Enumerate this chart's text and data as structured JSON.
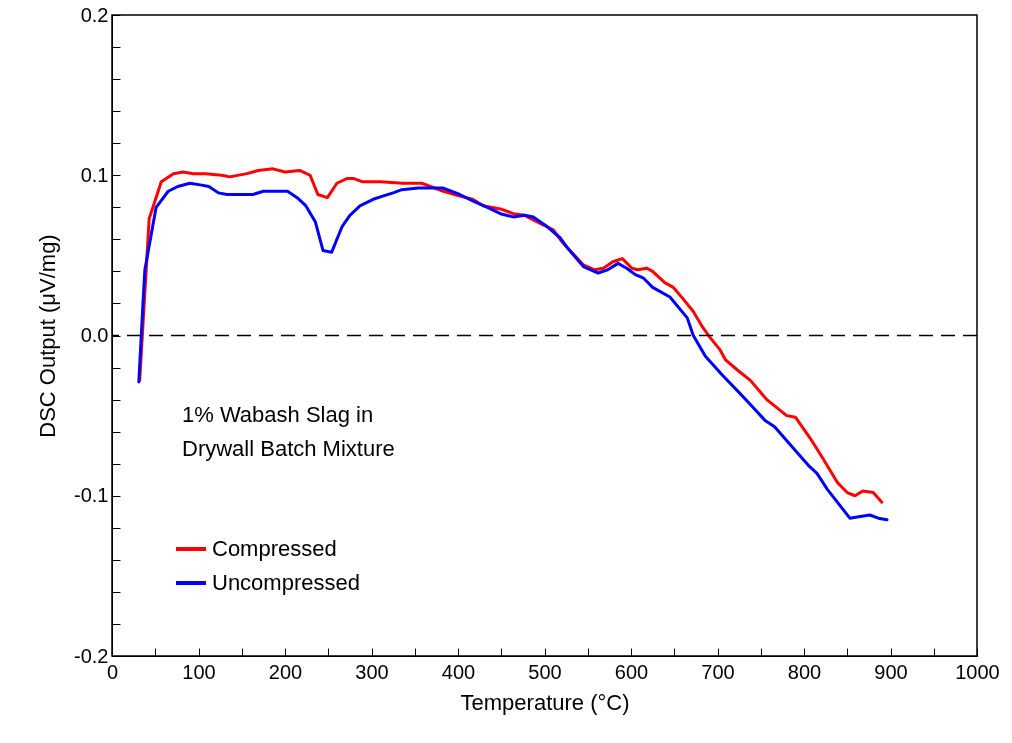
{
  "chart_data": {
    "type": "line",
    "xlabel": "Temperature (°C)",
    "ylabel": "DSC Output (μV/mg)",
    "annotations": [
      "1% Wabash Slag in\nDrywall Batch Mixture"
    ],
    "xlim": [
      0,
      1000
    ],
    "ylim": [
      -0.2,
      0.2
    ],
    "xticks": [
      0,
      {
        "value": 50,
        "label": null
      },
      100,
      {
        "value": 150,
        "label": null
      },
      200,
      {
        "value": 250,
        "label": null
      },
      300,
      {
        "value": 350,
        "label": null
      },
      400,
      {
        "value": 450,
        "label": null
      },
      500,
      {
        "value": 550,
        "label": null
      },
      600,
      {
        "value": 650,
        "label": null
      },
      700,
      {
        "value": 750,
        "label": null
      },
      800,
      {
        "value": 850,
        "label": null
      },
      900,
      {
        "value": 950,
        "label": null
      },
      1000
    ],
    "yticks": [
      -0.2,
      {
        "value": -0.18,
        "label": null
      },
      {
        "value": -0.16,
        "label": null
      },
      {
        "value": -0.14,
        "label": null
      },
      {
        "value": -0.12,
        "label": null
      },
      -0.1,
      {
        "value": -0.08,
        "label": null
      },
      {
        "value": -0.06,
        "label": null
      },
      {
        "value": -0.04,
        "label": null
      },
      {
        "value": -0.02,
        "label": null
      },
      {
        "value": 0,
        "label": "0.0"
      },
      {
        "value": 0.02,
        "label": null
      },
      {
        "value": 0.04,
        "label": null
      },
      {
        "value": 0.06,
        "label": null
      },
      {
        "value": 0.08,
        "label": null
      },
      0.1,
      {
        "value": 0.12,
        "label": null
      },
      {
        "value": 0.14,
        "label": null
      },
      {
        "value": 0.16,
        "label": null
      },
      {
        "value": 0.18,
        "label": null
      },
      0.2
    ],
    "grid": false,
    "legend": "bottom left",
    "line_style": "solid",
    "ref_lines": [
      {
        "axis": "y",
        "value": 0,
        "line_style": "dashed",
        "color": "#000000"
      }
    ],
    "series": [
      {
        "name": "Compressed",
        "color": "#ff0000",
        "x": [
          32,
          43,
          57,
          71,
          82,
          94,
          108,
          127,
          136,
          156,
          169,
          186,
          200,
          217,
          229,
          238,
          249,
          260,
          272,
          279,
          289,
          298,
          310,
          336,
          358,
          368,
          383,
          402,
          417,
          429,
          449,
          464,
          477,
          495,
          510,
          521,
          545,
          558,
          568,
          579,
          590,
          601,
          608,
          618,
          625,
          639,
          649,
          660,
          672,
          683,
          691,
          703,
          709,
          724,
          738,
          757,
          780,
          790,
          807,
          821,
          839,
          850,
          859,
          868,
          880,
          890
        ],
        "values": [
          -0.028,
          0.073,
          0.096,
          0.101,
          0.102,
          0.101,
          0.101,
          0.1,
          0.099,
          0.101,
          0.103,
          0.104,
          0.102,
          0.103,
          0.1,
          0.088,
          0.086,
          0.095,
          0.098,
          0.098,
          0.096,
          0.096,
          0.096,
          0.095,
          0.095,
          0.093,
          0.09,
          0.087,
          0.085,
          0.081,
          0.079,
          0.076,
          0.075,
          0.07,
          0.066,
          0.058,
          0.044,
          0.041,
          0.042,
          0.046,
          0.048,
          0.042,
          0.041,
          0.042,
          0.04,
          0.033,
          0.03,
          0.023,
          0.015,
          0.005,
          -0.001,
          -0.009,
          -0.015,
          -0.022,
          -0.028,
          -0.04,
          -0.05,
          -0.051,
          -0.064,
          -0.076,
          -0.092,
          -0.098,
          -0.1,
          -0.097,
          -0.098,
          -0.104
        ]
      },
      {
        "name": "Uncompressed",
        "color": "#0000ff",
        "x": [
          31,
          36,
          38,
          51,
          65,
          76,
          90,
          102,
          112,
          123,
          133,
          151,
          163,
          175,
          194,
          203,
          214,
          224,
          235,
          244,
          254,
          266,
          275,
          287,
          302,
          313,
          325,
          335,
          354,
          371,
          383,
          402,
          417,
          434,
          449,
          464,
          477,
          487,
          503,
          518,
          526,
          545,
          562,
          573,
          585,
          595,
          605,
          614,
          625,
          645,
          665,
          672,
          686,
          706,
          724,
          738,
          755,
          766,
          792,
          805,
          815,
          827,
          853,
          865,
          876,
          886,
          896
        ],
        "values": [
          -0.029,
          0.022,
          0.041,
          0.08,
          0.09,
          0.093,
          0.095,
          0.094,
          0.093,
          0.089,
          0.088,
          0.088,
          0.088,
          0.09,
          0.09,
          0.09,
          0.086,
          0.081,
          0.071,
          0.053,
          0.052,
          0.068,
          0.075,
          0.081,
          0.085,
          0.087,
          0.089,
          0.091,
          0.092,
          0.092,
          0.092,
          0.088,
          0.084,
          0.08,
          0.076,
          0.074,
          0.075,
          0.074,
          0.068,
          0.061,
          0.055,
          0.043,
          0.039,
          0.041,
          0.045,
          0.042,
          0.038,
          0.036,
          0.03,
          0.024,
          0.011,
          0.0,
          -0.013,
          -0.025,
          -0.035,
          -0.043,
          -0.053,
          -0.057,
          -0.073,
          -0.081,
          -0.086,
          -0.096,
          -0.114,
          -0.113,
          -0.112,
          -0.114,
          -0.115
        ]
      }
    ]
  }
}
